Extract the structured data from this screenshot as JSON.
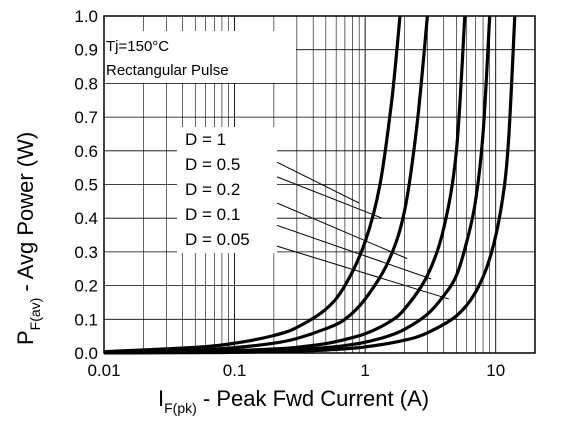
{
  "chart_data": {
    "type": "line",
    "title": "",
    "xlabel": {
      "main": "I",
      "sub": "F(pk)",
      "rest": " - Peak Fwd Current (A)"
    },
    "ylabel": {
      "main": "P",
      "sub": "F(av)",
      "rest": " - Avg Power (W)"
    },
    "x_scale": "log",
    "xlim": [
      0.01,
      20
    ],
    "ylim": [
      0,
      1.0
    ],
    "grid": true,
    "x_ticks": [
      {
        "value": 0.01,
        "label": "0.01"
      },
      {
        "value": 0.1,
        "label": "0.1"
      },
      {
        "value": 1,
        "label": "1"
      },
      {
        "value": 10,
        "label": "10"
      }
    ],
    "y_ticks": [
      {
        "value": 0.0,
        "label": "0.0"
      },
      {
        "value": 0.1,
        "label": "0.1"
      },
      {
        "value": 0.2,
        "label": "0.2"
      },
      {
        "value": 0.3,
        "label": "0.3"
      },
      {
        "value": 0.4,
        "label": "0.4"
      },
      {
        "value": 0.5,
        "label": "0.5"
      },
      {
        "value": 0.6,
        "label": "0.6"
      },
      {
        "value": 0.7,
        "label": "0.7"
      },
      {
        "value": 0.8,
        "label": "0.8"
      },
      {
        "value": 0.9,
        "label": "0.9"
      },
      {
        "value": 1.0,
        "label": "1.0"
      }
    ],
    "conditions": [
      "Tj=150°C",
      "Rectangular Pulse"
    ],
    "series": [
      {
        "name": "D = 1",
        "x": [
          0.01,
          0.05,
          0.1,
          0.2,
          0.3,
          0.5,
          0.7,
          1.0,
          1.3,
          1.6,
          1.85
        ],
        "y": [
          0.004,
          0.017,
          0.029,
          0.052,
          0.076,
          0.13,
          0.2,
          0.33,
          0.5,
          0.75,
          1.0
        ],
        "label_anchor": {
          "x": 0.9,
          "y": 0.445
        }
      },
      {
        "name": "D = 0.5",
        "x": [
          0.01,
          0.05,
          0.1,
          0.2,
          0.3,
          0.5,
          0.7,
          1.0,
          1.5,
          2.0,
          2.5,
          3.0
        ],
        "y": [
          0.002,
          0.009,
          0.016,
          0.029,
          0.043,
          0.072,
          0.1,
          0.16,
          0.27,
          0.42,
          0.68,
          1.0
        ],
        "label_anchor": {
          "x": 1.35,
          "y": 0.4
        }
      },
      {
        "name": "D = 0.2",
        "x": [
          0.01,
          0.05,
          0.1,
          0.2,
          0.3,
          0.5,
          0.7,
          1.0,
          1.5,
          2.0,
          3.0,
          4.0,
          5.0,
          5.8
        ],
        "y": [
          0.001,
          0.004,
          0.007,
          0.012,
          0.017,
          0.028,
          0.04,
          0.057,
          0.09,
          0.13,
          0.23,
          0.37,
          0.6,
          1.0
        ],
        "label_anchor": {
          "x": 2.1,
          "y": 0.28
        }
      },
      {
        "name": "D = 0.1",
        "x": [
          0.01,
          0.05,
          0.1,
          0.2,
          0.3,
          0.5,
          0.7,
          1.0,
          1.5,
          2.0,
          3.0,
          4.0,
          5.0,
          6.0,
          7.0,
          8.0,
          9.0
        ],
        "y": [
          0.0005,
          0.002,
          0.004,
          0.007,
          0.01,
          0.016,
          0.022,
          0.032,
          0.05,
          0.07,
          0.115,
          0.17,
          0.23,
          0.33,
          0.45,
          0.65,
          1.0
        ],
        "label_anchor": {
          "x": 3.2,
          "y": 0.22
        }
      },
      {
        "name": "D = 0.05",
        "x": [
          0.01,
          0.05,
          0.1,
          0.2,
          0.3,
          0.5,
          1.0,
          2.0,
          3.0,
          5.0,
          7.0,
          9.0,
          11.0,
          12.5,
          14.0
        ],
        "y": [
          0.0003,
          0.001,
          0.002,
          0.004,
          0.006,
          0.009,
          0.018,
          0.038,
          0.06,
          0.11,
          0.18,
          0.28,
          0.43,
          0.62,
          1.0
        ],
        "label_anchor": {
          "x": 4.4,
          "y": 0.16
        }
      }
    ]
  }
}
